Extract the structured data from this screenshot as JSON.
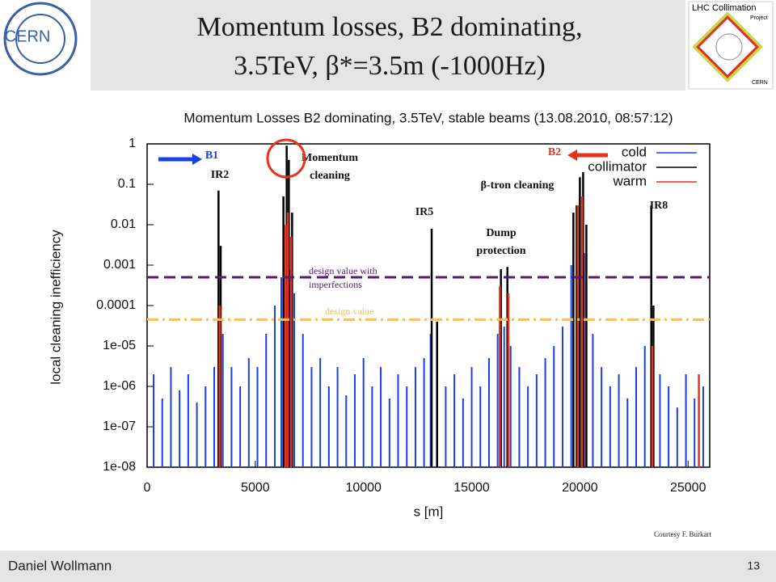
{
  "slide": {
    "title_line1": "Momentum losses, B2 dominating,",
    "title_line2": "3.5TeV, β*=3.5m (-1000Hz)",
    "logo_left": "CERN",
    "logo_right_line1": "LHC Collimation",
    "logo_right_line2": "Project",
    "logo_right_line3": "CERN",
    "author": "Daniel Wollmann",
    "page": "13",
    "courtesy": "Courtesy F. Burkart"
  },
  "chart_data": {
    "type": "bar",
    "title": "Momentum Losses B2 dominating, 3.5TeV, stable beams (13.08.2010, 08:57:12)",
    "xlabel": "s [m]",
    "ylabel": "local cleaning inefficiency",
    "xlim": [
      0,
      26000
    ],
    "xticks": [
      0,
      5000,
      10000,
      15000,
      20000,
      25000
    ],
    "ylim": [
      1e-08,
      1
    ],
    "log_y": true,
    "yticks": [
      {
        "value": 1e-08,
        "label": "1e-08"
      },
      {
        "value": 1e-07,
        "label": "1e-07"
      },
      {
        "value": 1e-06,
        "label": "1e-06"
      },
      {
        "value": 1e-05,
        "label": "1e-05"
      },
      0.0001,
      0.001,
      0.01,
      0.1,
      1
    ],
    "legend": "upper right",
    "series": [
      {
        "name": "cold",
        "color": "#1a3ee8",
        "x": [
          300,
          700,
          1100,
          1500,
          1900,
          2300,
          2700,
          3100,
          3300,
          3500,
          3900,
          4300,
          4700,
          5100,
          5500,
          5900,
          6200,
          6400,
          6600,
          6800,
          7200,
          7600,
          8000,
          8400,
          8800,
          9200,
          9600,
          10000,
          10400,
          10800,
          11200,
          11600,
          12000,
          12400,
          12800,
          13100,
          13400,
          13800,
          14200,
          14600,
          15000,
          15400,
          15800,
          16200,
          16500,
          16800,
          17200,
          17600,
          18000,
          18400,
          18800,
          19200,
          19600,
          19900,
          20200,
          20600,
          21000,
          21400,
          21800,
          22200,
          22600,
          23000,
          23300,
          23700,
          24100,
          24500,
          24900,
          25300,
          25700
        ],
        "values": [
          2e-06,
          5e-07,
          3e-06,
          8e-07,
          2e-06,
          4e-07,
          1e-06,
          3e-06,
          0.0002,
          2e-05,
          3e-06,
          1e-06,
          5e-06,
          3e-06,
          2e-05,
          0.0001,
          0.0005,
          0.001,
          0.0008,
          0.0002,
          2e-05,
          3e-06,
          5e-06,
          1e-06,
          3e-06,
          6e-07,
          2e-06,
          5e-06,
          1e-06,
          3e-06,
          5e-07,
          2e-06,
          1e-06,
          3e-06,
          5e-06,
          2e-05,
          3e-06,
          1e-06,
          2e-06,
          5e-07,
          3e-06,
          1e-06,
          5e-06,
          2e-05,
          3e-05,
          1e-05,
          3e-06,
          1e-06,
          2e-06,
          5e-06,
          1e-05,
          3e-05,
          0.001,
          0.005,
          0.002,
          2e-05,
          3e-06,
          1e-06,
          2e-06,
          5e-07,
          3e-06,
          1e-05,
          0.0005,
          2e-06,
          1e-06,
          3e-07,
          2e-06,
          5e-07,
          1e-06
        ]
      },
      {
        "name": "collimator",
        "color": "#000000",
        "x": [
          3300,
          3400,
          6300,
          6450,
          6550,
          6700,
          13150,
          13400,
          16350,
          16650,
          19700,
          19850,
          20000,
          20150,
          20300,
          23300,
          23400
        ],
        "values": [
          0.07,
          0.003,
          0.05,
          0.9,
          0.4,
          0.02,
          0.008,
          4e-05,
          0.0008,
          0.0009,
          0.02,
          0.03,
          0.15,
          0.2,
          0.01,
          0.03,
          0.0001
        ]
      },
      {
        "name": "warm",
        "color": "#e8321e",
        "x": [
          3350,
          6400,
          6500,
          6650,
          16300,
          16700,
          19900,
          20100,
          23350,
          25500
        ],
        "values": [
          0.0001,
          0.01,
          0.02,
          0.005,
          0.0003,
          0.0002,
          0.03,
          0.05,
          1e-05,
          2e-06
        ]
      }
    ],
    "reference_lines": [
      {
        "label": "design value with imperfections",
        "value": 0.0005,
        "color": "#5a1a6e"
      },
      {
        "label": "design value",
        "value": 4.5e-05,
        "color": "#f5c060"
      }
    ],
    "annotations": [
      "B1",
      "IR2",
      "Momentum cleaning",
      "IR5",
      "Dump protection",
      "β-tron cleaning",
      "B2",
      "IR8"
    ]
  }
}
